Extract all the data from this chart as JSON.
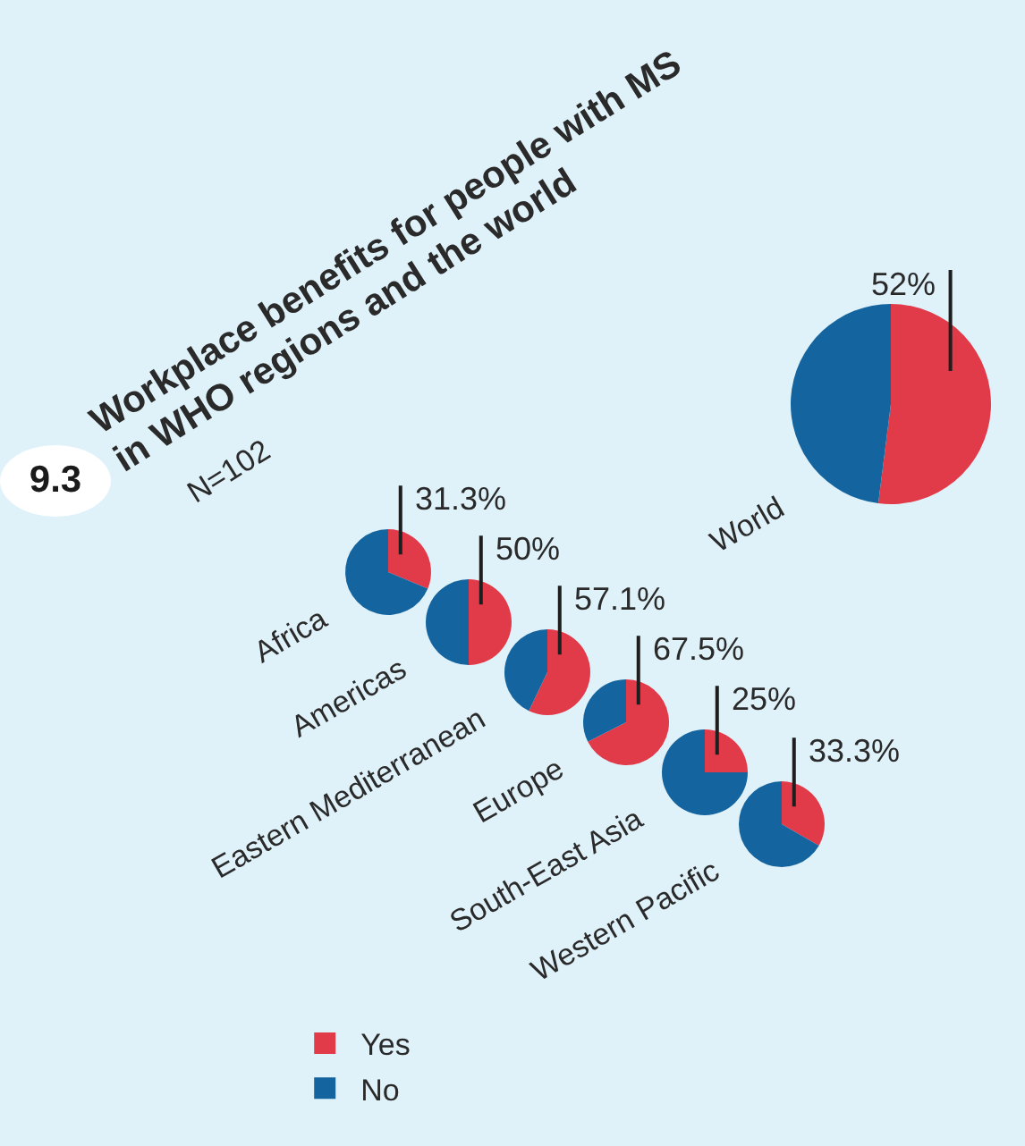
{
  "chart_data": [
    {
      "type": "other",
      "title": "Workplace benefits for people with MS in WHO regions and the world",
      "subtitle": "N=102",
      "annotations": [
        "9.3"
      ]
    },
    {
      "type": "pie",
      "title": "World",
      "categories": [
        null,
        null
      ],
      "values": [
        52,
        48
      ],
      "colors": [
        "#e13b49",
        "#14659f"
      ],
      "value_labels": [
        "52%",
        null
      ]
    },
    {
      "type": "pie",
      "title": "Africa",
      "categories": [
        null,
        null
      ],
      "values": [
        31.3,
        68.7
      ],
      "colors": [
        "#e13b49",
        "#14659f"
      ],
      "value_labels": [
        "31.3%",
        null
      ]
    },
    {
      "type": "pie",
      "title": "Americas",
      "categories": [
        null,
        null
      ],
      "values": [
        50,
        50
      ],
      "colors": [
        "#e13b49",
        "#14659f"
      ],
      "value_labels": [
        "50%",
        null
      ]
    },
    {
      "type": "pie",
      "title": "Eastern Mediterranean",
      "categories": [
        null,
        null
      ],
      "values": [
        57.1,
        42.9
      ],
      "colors": [
        "#e13b49",
        "#14659f"
      ],
      "value_labels": [
        "57.1%",
        null
      ]
    },
    {
      "type": "pie",
      "title": "Europe",
      "categories": [
        null,
        null
      ],
      "values": [
        67.5,
        32.5
      ],
      "colors": [
        "#e13b49",
        "#14659f"
      ],
      "value_labels": [
        "67.5%",
        null
      ]
    },
    {
      "type": "pie",
      "title": "South-East Asia",
      "categories": [
        null,
        null
      ],
      "values": [
        25,
        75
      ],
      "colors": [
        "#e13b49",
        "#14659f"
      ],
      "value_labels": [
        "25%",
        null
      ]
    },
    {
      "type": "pie",
      "title": "Western Pacific",
      "categories": [
        "Yes",
        "No"
      ],
      "values": [
        33.3,
        66.7
      ],
      "colors": [
        "#e13b49",
        "#14659f"
      ],
      "value_labels": [
        "33.3%",
        null
      ],
      "legend": "bottom left"
    }
  ]
}
